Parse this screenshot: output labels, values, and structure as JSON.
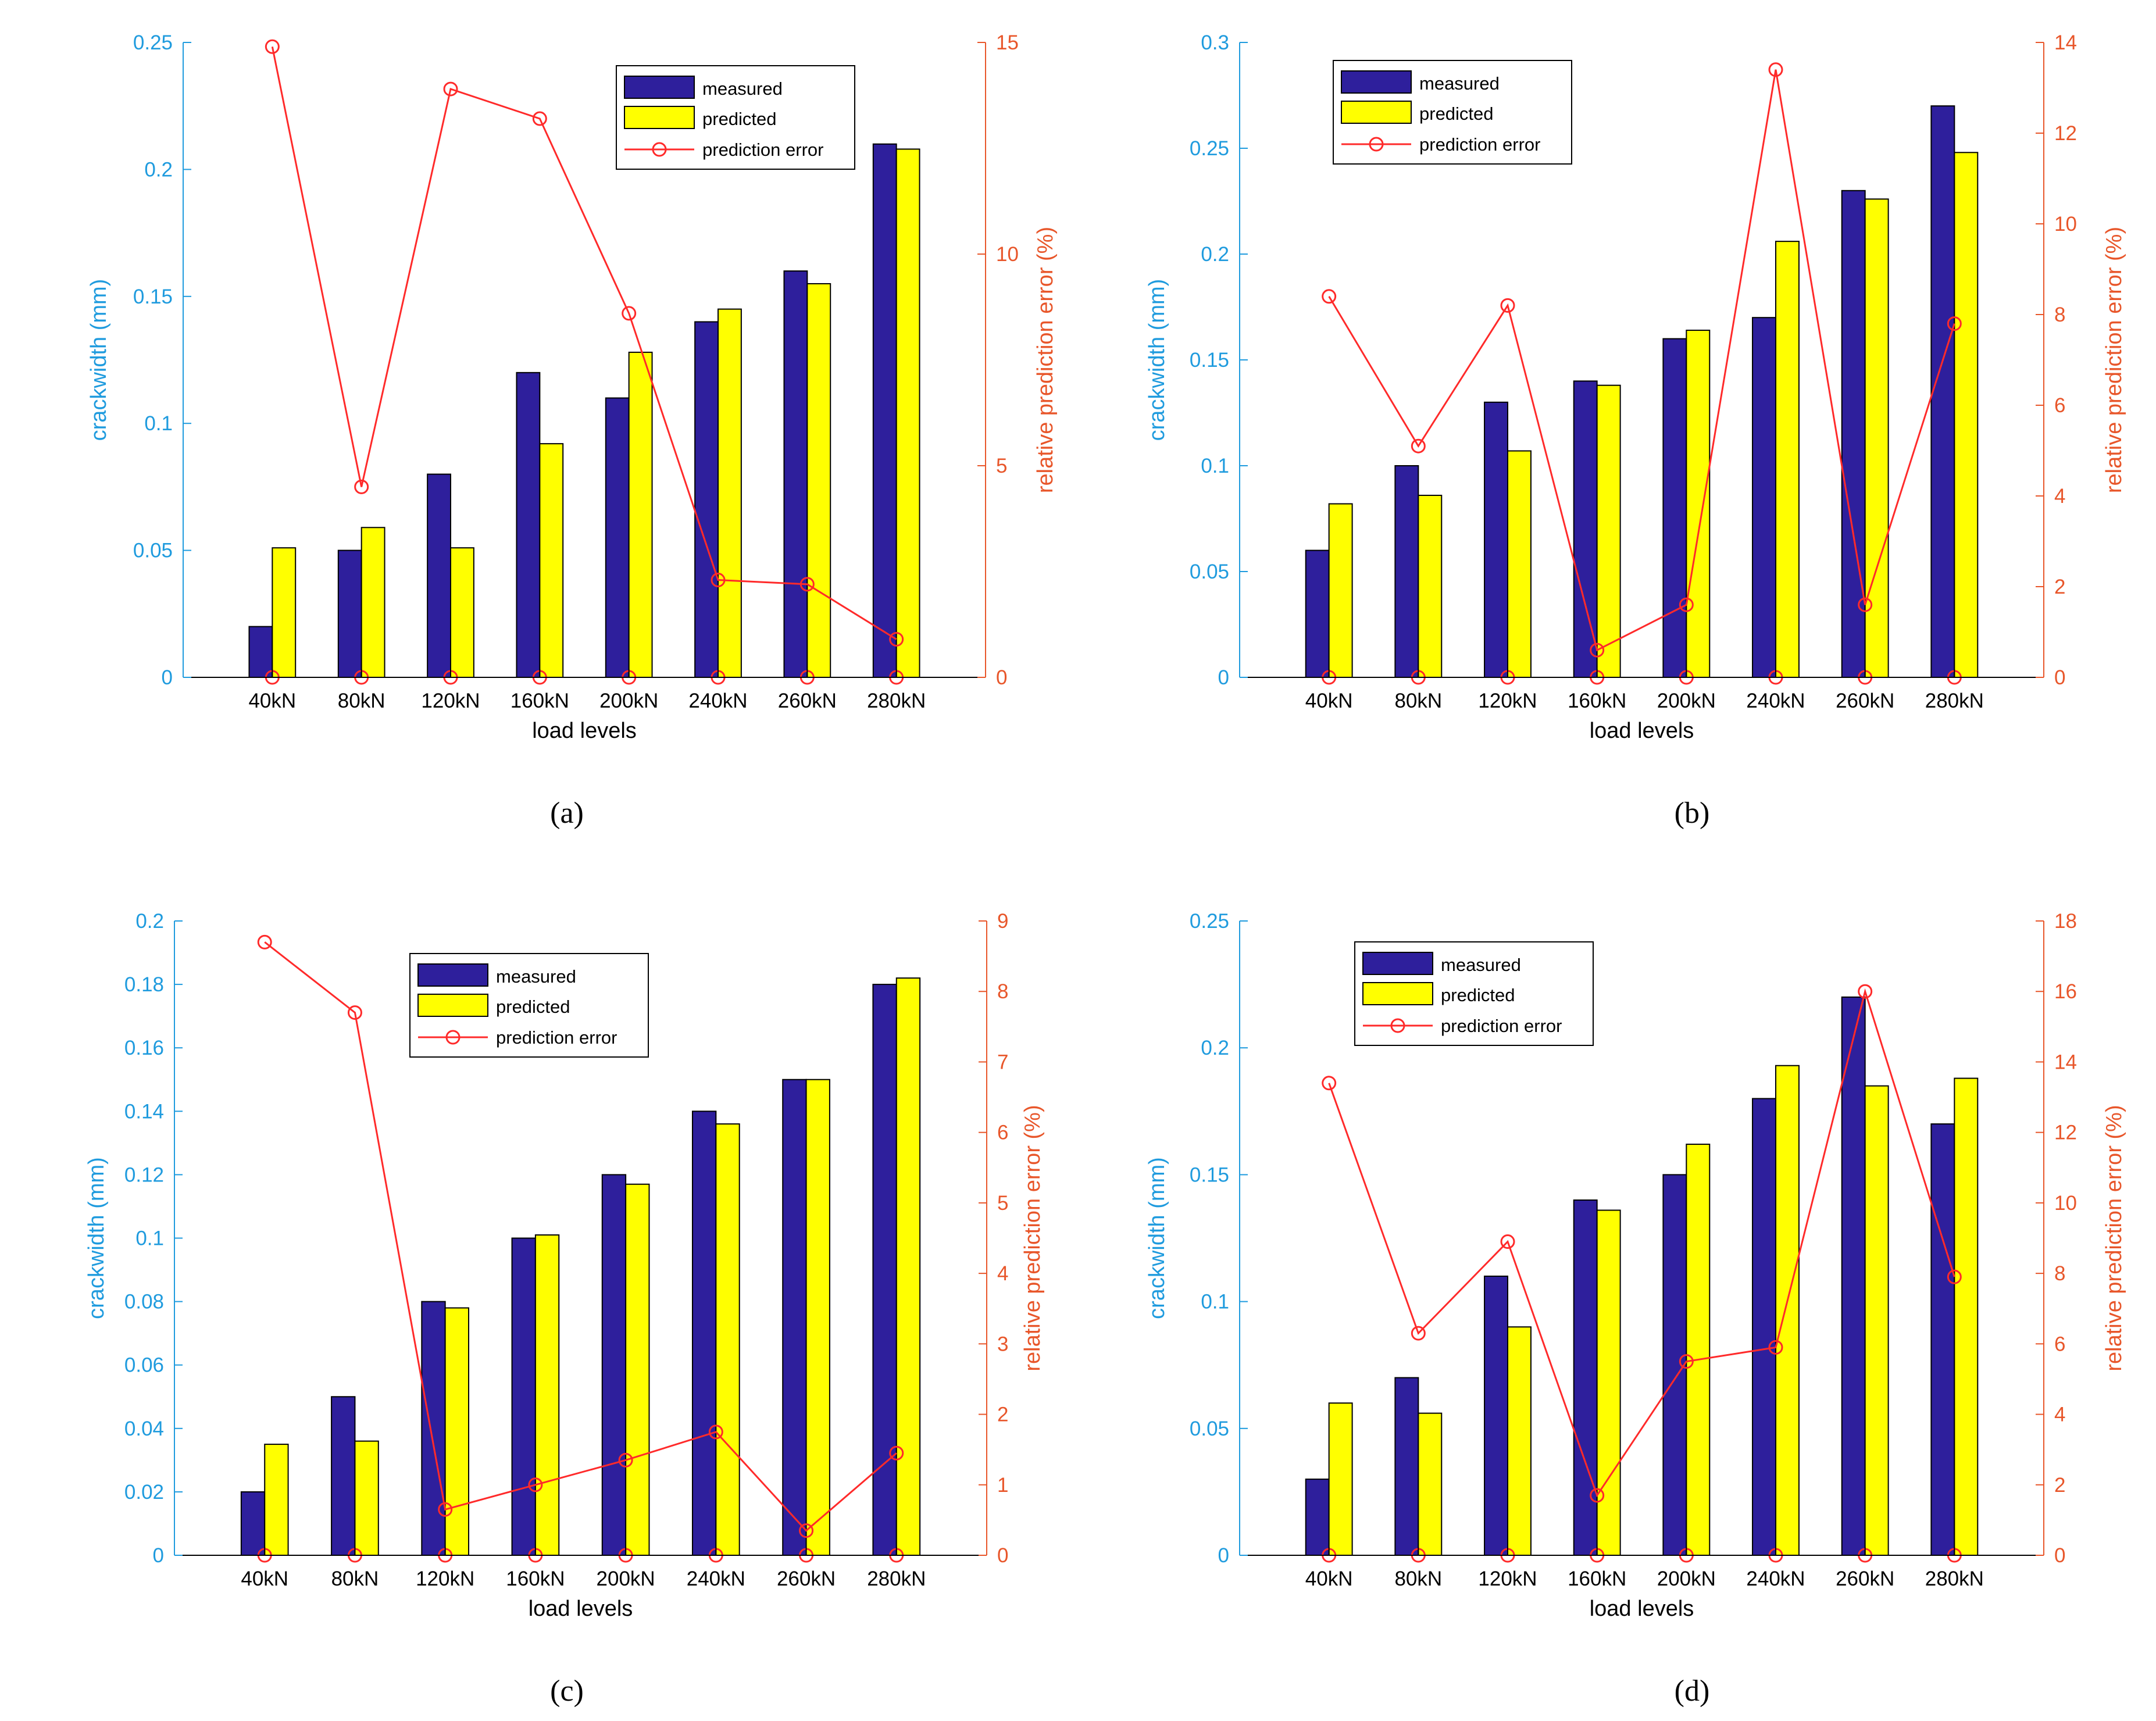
{
  "colors": {
    "left_axis": "#1f9bde",
    "right_axis": "#e8562a",
    "measured": "#2e1f9c",
    "predicted": "#ffff00",
    "error_line": "#ff2a2a",
    "axis_line": "#000000"
  },
  "chart_data": [
    {
      "panel": "(a)",
      "type": "bar",
      "xlabel": "load levels",
      "ylabel": "crackwidth (mm)",
      "y2label": "relative prediction error (%)",
      "categories": [
        "40kN",
        "80kN",
        "120kN",
        "160kN",
        "200kN",
        "240kN",
        "260kN",
        "280kN"
      ],
      "ylim": [
        0,
        0.25
      ],
      "yticks": [
        "0",
        "0.05",
        "0.1",
        "0.15",
        "0.2",
        "0.25"
      ],
      "y2lim": [
        0,
        15
      ],
      "y2ticks": [
        "0",
        "5",
        "10",
        "15"
      ],
      "legend_position": "top-right",
      "series": [
        {
          "name": "measured",
          "type": "bar",
          "axis": "left",
          "values": [
            0.02,
            0.05,
            0.08,
            0.12,
            0.11,
            0.14,
            0.16,
            0.21
          ]
        },
        {
          "name": "predicted",
          "type": "bar",
          "axis": "left",
          "values": [
            0.051,
            0.059,
            0.051,
            0.092,
            0.128,
            0.145,
            0.155,
            0.208
          ]
        },
        {
          "name": "prediction error",
          "type": "line",
          "axis": "right",
          "marker": "circle",
          "values": [
            14.9,
            4.5,
            13.9,
            13.2,
            8.6,
            2.3,
            2.2,
            0.9
          ]
        }
      ]
    },
    {
      "panel": "(b)",
      "type": "bar",
      "xlabel": "load levels",
      "ylabel": "crackwidth (mm)",
      "y2label": "relative prediction error (%)",
      "categories": [
        "40kN",
        "80kN",
        "120kN",
        "160kN",
        "200kN",
        "240kN",
        "260kN",
        "280kN"
      ],
      "ylim": [
        0,
        0.3
      ],
      "yticks": [
        "0",
        "0.05",
        "0.1",
        "0.15",
        "0.2",
        "0.25",
        "0.3"
      ],
      "y2lim": [
        0,
        14
      ],
      "y2ticks": [
        "0",
        "2",
        "4",
        "6",
        "8",
        "10",
        "12",
        "14"
      ],
      "legend_position": "top-left",
      "series": [
        {
          "name": "measured",
          "type": "bar",
          "axis": "left",
          "values": [
            0.06,
            0.1,
            0.13,
            0.14,
            0.16,
            0.17,
            0.23,
            0.27
          ]
        },
        {
          "name": "predicted",
          "type": "bar",
          "axis": "left",
          "values": [
            0.082,
            0.086,
            0.107,
            0.138,
            0.164,
            0.206,
            0.226,
            0.248
          ]
        },
        {
          "name": "prediction error",
          "type": "line",
          "axis": "right",
          "marker": "circle",
          "values": [
            8.4,
            5.1,
            8.2,
            0.6,
            1.6,
            13.4,
            1.6,
            7.8
          ]
        }
      ]
    },
    {
      "panel": "(c)",
      "type": "bar",
      "xlabel": "load levels",
      "ylabel": "crackwidth (mm)",
      "y2label": "relative prediction error (%)",
      "categories": [
        "40kN",
        "80kN",
        "120kN",
        "160kN",
        "200kN",
        "240kN",
        "260kN",
        "280kN"
      ],
      "ylim": [
        0,
        0.2
      ],
      "yticks": [
        "0",
        "0.02",
        "0.04",
        "0.06",
        "0.08",
        "0.1",
        "0.12",
        "0.14",
        "0.16",
        "0.18",
        "0.2"
      ],
      "y2lim": [
        0,
        9
      ],
      "y2ticks": [
        "0",
        "1",
        "2",
        "3",
        "4",
        "5",
        "6",
        "7",
        "8",
        "9"
      ],
      "legend_position": "top-center",
      "series": [
        {
          "name": "measured",
          "type": "bar",
          "axis": "left",
          "values": [
            0.02,
            0.05,
            0.08,
            0.1,
            0.12,
            0.14,
            0.15,
            0.18
          ]
        },
        {
          "name": "predicted",
          "type": "bar",
          "axis": "left",
          "values": [
            0.035,
            0.036,
            0.078,
            0.101,
            0.117,
            0.136,
            0.15,
            0.182
          ]
        },
        {
          "name": "prediction error",
          "type": "line",
          "axis": "right",
          "marker": "circle",
          "values": [
            8.7,
            7.7,
            0.65,
            1.0,
            1.35,
            1.75,
            0.35,
            1.45
          ]
        }
      ]
    },
    {
      "panel": "(d)",
      "type": "bar",
      "xlabel": "load levels",
      "ylabel": "crackwidth (mm)",
      "y2label": "relative prediction error (%)",
      "categories": [
        "40kN",
        "80kN",
        "120kN",
        "160kN",
        "200kN",
        "240kN",
        "260kN",
        "280kN"
      ],
      "ylim": [
        0,
        0.25
      ],
      "yticks": [
        "0",
        "0.05",
        "0.1",
        "0.15",
        "0.2",
        "0.25"
      ],
      "y2lim": [
        0,
        18
      ],
      "y2ticks": [
        "0",
        "2",
        "4",
        "6",
        "8",
        "10",
        "12",
        "14",
        "16",
        "18"
      ],
      "legend_position": "top-left",
      "series": [
        {
          "name": "measured",
          "type": "bar",
          "axis": "left",
          "values": [
            0.03,
            0.07,
            0.11,
            0.14,
            0.15,
            0.18,
            0.22,
            0.17
          ]
        },
        {
          "name": "predicted",
          "type": "bar",
          "axis": "left",
          "values": [
            0.06,
            0.056,
            0.09,
            0.136,
            0.162,
            0.193,
            0.185,
            0.188
          ]
        },
        {
          "name": "prediction error",
          "type": "line",
          "axis": "right",
          "marker": "circle",
          "values": [
            13.4,
            6.3,
            8.9,
            1.7,
            5.5,
            5.9,
            16.0,
            7.9
          ]
        }
      ]
    }
  ]
}
